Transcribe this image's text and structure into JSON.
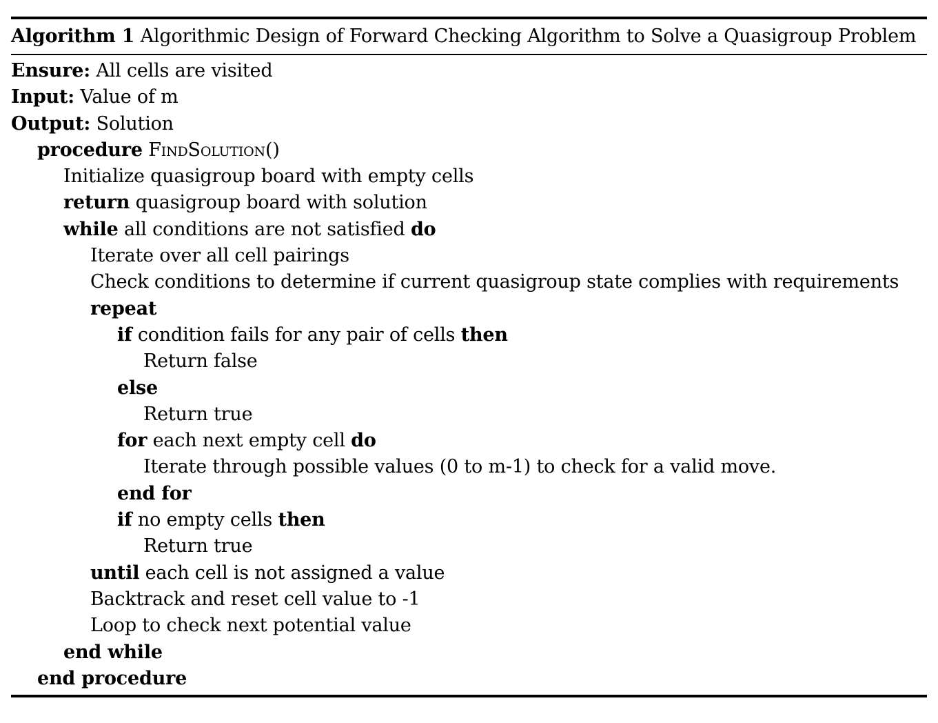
{
  "algorithm": {
    "caption_label": "Algorithm 1",
    "caption_text": "Algorithmic Design of Forward Checking Algorithm to Solve a Quasigroup Problem",
    "ensure": {
      "keyword": "Ensure:",
      "text": "All cells are visited"
    },
    "input": {
      "keyword": "Input:",
      "text": "Value of m"
    },
    "output": {
      "keyword": "Output:",
      "text": "Solution"
    },
    "lines": [
      {
        "kw1": "procedure",
        "sc": "FindSolution",
        "tail": "()"
      },
      {
        "text": "Initialize quasigroup board with empty cells"
      },
      {
        "kw1": "return",
        "text": "quasigroup board with solution"
      },
      {
        "kw1": "while",
        "text": "all conditions are not satisfied",
        "kw2": "do"
      },
      {
        "text": "Iterate over all cell pairings"
      },
      {
        "text": "Check conditions to determine if current quasigroup state complies with requirements"
      },
      {
        "kw1": "repeat"
      },
      {
        "kw1": "if",
        "text": "condition fails for any pair of cells",
        "kw2": "then"
      },
      {
        "text": "Return false"
      },
      {
        "kw1": "else"
      },
      {
        "text": "Return true"
      },
      {
        "kw1": "for",
        "text": "each next empty cell",
        "kw2": "do"
      },
      {
        "text": "Iterate through possible values (0 to m-1) to check for a valid move."
      },
      {
        "kw1": "end for"
      },
      {
        "kw1": "if",
        "text": "no empty cells",
        "kw2": "then"
      },
      {
        "text": "Return true"
      },
      {
        "kw1": "until",
        "text": "each cell is not assigned a value"
      },
      {
        "text": "Backtrack and reset cell value to -1"
      },
      {
        "text": "Loop to check next potential value"
      },
      {
        "kw1": "end while"
      },
      {
        "kw1": "end procedure"
      }
    ]
  }
}
